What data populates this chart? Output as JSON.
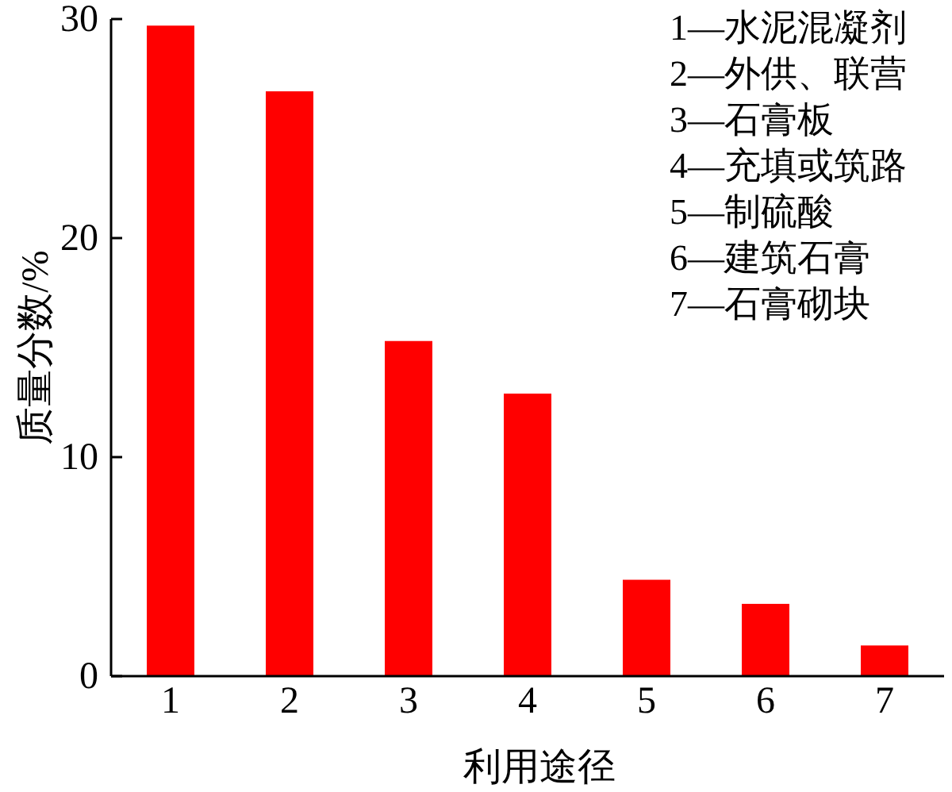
{
  "chart_data": {
    "type": "bar",
    "xlabel": "利用途径",
    "ylabel": "质量分数/%",
    "categories": [
      "1",
      "2",
      "3",
      "4",
      "5",
      "6",
      "7"
    ],
    "values": [
      29.7,
      26.7,
      15.3,
      12.9,
      4.4,
      3.3,
      1.4
    ],
    "color": "#ff0000",
    "ylim": [
      0,
      30
    ],
    "yticks": [
      0,
      10,
      20,
      30
    ],
    "grid": false,
    "annotations": [
      "1—水泥混凝剂",
      "2—外供、联营",
      "3—石膏板",
      "4—充填或筑路",
      "5—制硫酸",
      "6—建筑石膏",
      "7—石膏砌块"
    ]
  }
}
